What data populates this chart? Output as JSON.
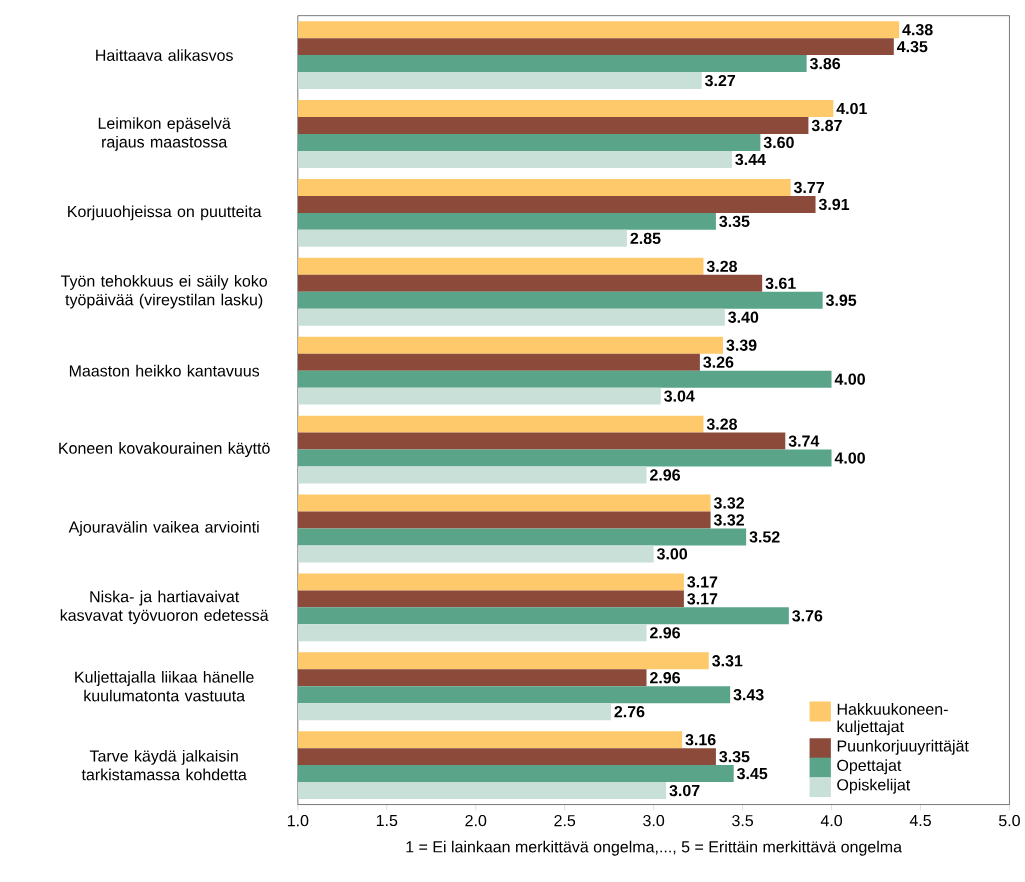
{
  "chart_data": {
    "type": "bar",
    "orientation": "horizontal",
    "xlabel": "1 = Ei lainkaan merkittävä ongelma,..., 5 = Erittäin merkittävä ongelma",
    "categories": [
      "Haittaava alikasvos",
      "Leimikon epäselvä rajaus maastossa",
      "Korjuuohjeissa on puutteita",
      "Työn tehokkuus ei säily koko työpäivää (vireystilan lasku)",
      "Maaston heikko kantavuus",
      "Koneen kovakourainen käyttö",
      "Ajouravälin vaikea arviointi",
      "Niska- ja hartiavaivat kasvavat työvuoron edetessä",
      "Kuljettajalla liikaa hänelle kuulumatonta vastuuta",
      "Tarve käydä jalkaisin tarkistamassa kohdetta"
    ],
    "series": [
      {
        "name": "Hakkuukoneen-kuljettajat",
        "color": "#fdc96b",
        "values": [
          4.38,
          4.01,
          3.77,
          3.28,
          3.39,
          3.28,
          3.32,
          3.17,
          3.31,
          3.16
        ],
        "value_labels": [
          "4.38",
          "4.01",
          "3.77",
          "3.28",
          "3.39",
          "3.28",
          "3.32",
          "3.17",
          "3.31",
          "3.16"
        ]
      },
      {
        "name": "Puunkorjuuyrittäjät",
        "color": "#8b4a3a",
        "values": [
          4.35,
          3.87,
          3.91,
          3.61,
          3.26,
          3.74,
          3.32,
          3.17,
          2.96,
          3.35
        ],
        "value_labels": [
          "4.35",
          "3.87",
          "3.91",
          "3.61",
          "3.26",
          "3.74",
          "3.32",
          "3.17",
          "2.96",
          "3.35"
        ]
      },
      {
        "name": "Opettajat",
        "color": "#5aa58a",
        "values": [
          3.86,
          3.6,
          3.35,
          3.95,
          4.0,
          4.0,
          3.52,
          3.76,
          3.43,
          3.45
        ],
        "value_labels": [
          "3.86",
          "3.60",
          "3.35",
          "3.95",
          "4.00",
          "4.00",
          "3.52",
          "3.76",
          "3.43",
          "3.45"
        ]
      },
      {
        "name": "Opiskelijat",
        "color": "#c9e0d8",
        "values": [
          3.27,
          3.44,
          2.85,
          3.4,
          3.04,
          2.96,
          3.0,
          2.96,
          2.76,
          3.07
        ],
        "value_labels": [
          "3.27",
          "3.44",
          "2.85",
          "3.40",
          "3.04",
          "2.96",
          "3.00",
          "2.96",
          "2.76",
          "3.07"
        ]
      }
    ],
    "xlim": [
      1,
      5
    ],
    "xticks": [
      {
        "value": 1,
        "label": "1.0"
      },
      {
        "value": 1.5,
        "label": "1.5"
      },
      {
        "value": 2,
        "label": "2.0"
      },
      {
        "value": 2.5,
        "label": "2.5"
      },
      {
        "value": 3,
        "label": "3.0"
      },
      {
        "value": 3.5,
        "label": "3.5"
      },
      {
        "value": 4,
        "label": "4.0"
      },
      {
        "value": 4.5,
        "label": "4.5"
      },
      {
        "value": 5,
        "label": "5.0"
      }
    ],
    "grid": false,
    "legend": "bottom right"
  }
}
